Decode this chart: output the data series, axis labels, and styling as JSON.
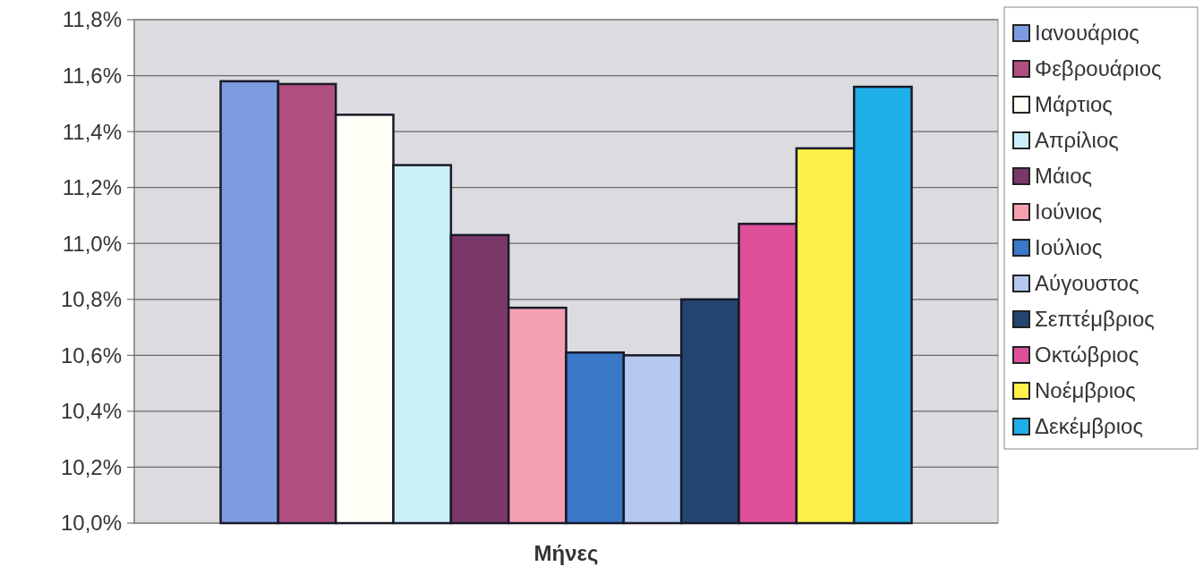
{
  "chart_data": {
    "type": "bar",
    "xlabel": "Μήνες",
    "categories": [
      null
    ],
    "ylim": [
      10.0,
      11.8
    ],
    "yticks": [
      {
        "value": 10.0,
        "label": "10,0%"
      },
      {
        "value": 10.2,
        "label": "10,2%"
      },
      {
        "value": 10.4,
        "label": "10,4%"
      },
      {
        "value": 10.6,
        "label": "10,6%"
      },
      {
        "value": 10.8,
        "label": "10,8%"
      },
      {
        "value": 11.0,
        "label": "11,0%"
      },
      {
        "value": 11.2,
        "label": "11,2%"
      },
      {
        "value": 11.4,
        "label": "11,4%"
      },
      {
        "value": 11.6,
        "label": "11,6%"
      },
      {
        "value": 11.8,
        "label": "11,8%"
      }
    ],
    "grid": "y",
    "legend": "right",
    "series": [
      {
        "name": "Ιανουάριος",
        "color": "#7b9ae0",
        "values": [
          11.58
        ]
      },
      {
        "name": "Φεβρουάριος",
        "color": "#b04f80",
        "values": [
          11.57
        ]
      },
      {
        "name": "Μάρτιος",
        "color": "#fffff8",
        "values": [
          11.46
        ]
      },
      {
        "name": "Απρίλιος",
        "color": "#ccf0fa",
        "values": [
          11.28
        ]
      },
      {
        "name": "Μάιος",
        "color": "#7a3868",
        "values": [
          11.03
        ]
      },
      {
        "name": "Ιούνιος",
        "color": "#f5a0b0",
        "values": [
          10.77
        ]
      },
      {
        "name": "Ιούλιος",
        "color": "#3a78c8",
        "values": [
          10.61
        ]
      },
      {
        "name": "Αύγουστος",
        "color": "#b4c8f0",
        "values": [
          10.6
        ]
      },
      {
        "name": "Σεπτέμβριος",
        "color": "#234570",
        "values": [
          10.8
        ]
      },
      {
        "name": "Οκτώβριος",
        "color": "#e0509a",
        "values": [
          11.07
        ]
      },
      {
        "name": "Νοέμβριος",
        "color": "#fff04a",
        "values": [
          11.34
        ]
      },
      {
        "name": "Δεκέμβριος",
        "color": "#1eaee8",
        "values": [
          11.56
        ]
      }
    ]
  }
}
